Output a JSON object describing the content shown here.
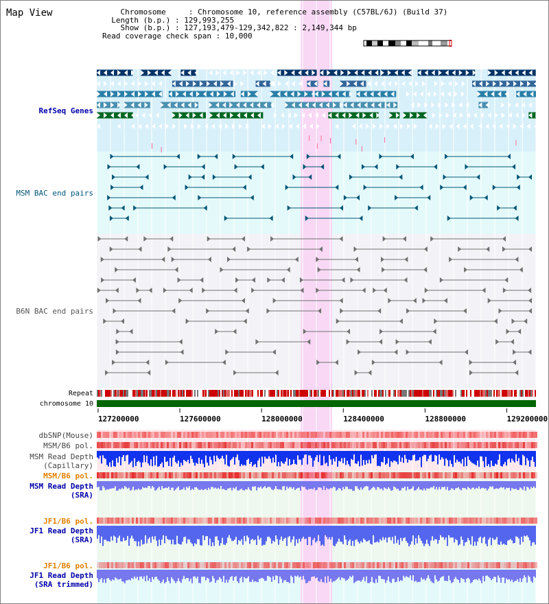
{
  "page": {
    "title": "Map View"
  },
  "info": {
    "chromosome_label": "Chromosome",
    "chromosome_value": "Chromosome 10, reference assembly (C57BL/6J) (Build 37)",
    "length_label": "Length (b.p.)",
    "length_value": "129,993,255",
    "show_label": "Show (b.p.)",
    "show_value": "127,193,479-129,342,822 : 2,149,344 bp",
    "coverage_label": "Read coverage check span",
    "coverage_value": "10,000"
  },
  "tracks": {
    "refseq": {
      "label": "RefSeq Genes",
      "color": "#0000aa"
    },
    "msm_bac": {
      "label": "MSM BAC end pairs",
      "color": "#005577"
    },
    "b6n_bac": {
      "label": "B6N BAC end pairs",
      "color": "#555555"
    },
    "repeat": {
      "label": "Repeat"
    },
    "chromosome": {
      "label": "chromosome 10"
    },
    "dbsnp": {
      "label": "dbSNP(Mouse)"
    },
    "msm_pol_1": {
      "label": "MSM/B6 pol."
    },
    "msm_depth_cap": {
      "label_line1": "MSM Read Depth",
      "label_line2": "(Capillary)"
    },
    "msm_pol_2": {
      "label": "MSM/B6 pol.",
      "color": "#e08000"
    },
    "msm_depth_sra": {
      "label_line1": "MSM Read Depth",
      "label_line2": "(SRA)",
      "color": "#0000aa"
    },
    "jf1_pol_1": {
      "label": "JF1/B6 pol.",
      "color": "#e08000"
    },
    "jf1_depth_sra": {
      "label_line1": "JF1 Read Depth",
      "label_line2": "(SRA)",
      "color": "#0000aa"
    },
    "jf1_pol_2": {
      "label": "JF1/B6 pol.",
      "color": "#e08000"
    },
    "jf1_depth_trim": {
      "label_line1": "JF1 Read Depth",
      "label_line2": "(SRA trimmed)",
      "color": "#0000aa"
    }
  },
  "axis": {
    "ticks": [
      "127200000",
      "127600000",
      "128000000",
      "128400000",
      "128800000",
      "129200000"
    ]
  },
  "colors": {
    "refseq_bg": "#d8f0fa",
    "msm_bg": "#e4fafa",
    "b6n_bg": "#f3f3f7",
    "highlight": "#f8d8f4",
    "chromosome_bar": "#006600"
  }
}
